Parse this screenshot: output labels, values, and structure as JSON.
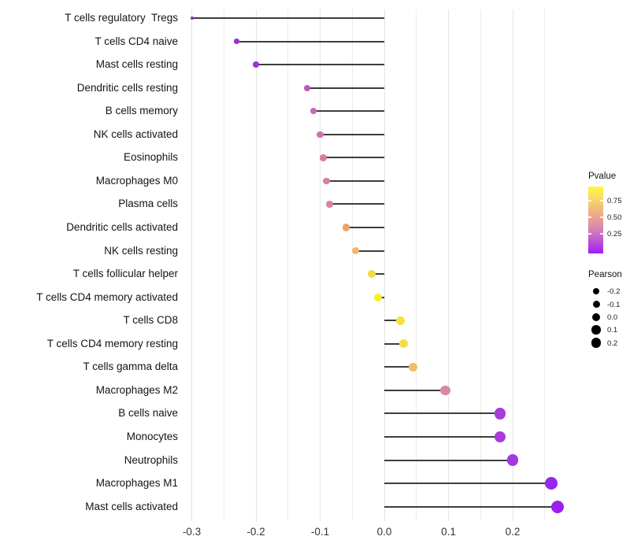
{
  "chart_data": {
    "type": "scatter",
    "variant": "lollipop",
    "title": "",
    "xlabel": "",
    "ylabel": "",
    "xlim": [
      -0.33,
      0.3
    ],
    "x_ticks": [
      -0.3,
      -0.2,
      -0.1,
      0.0,
      0.1,
      0.2
    ],
    "x_tick_labels": [
      "-0.3",
      "-0.2",
      "-0.1",
      "0.0",
      "0.1",
      "0.2"
    ],
    "grid_ticks": [
      -0.3,
      -0.25,
      -0.2,
      -0.15,
      -0.1,
      -0.05,
      0.0,
      0.05,
      0.1,
      0.15,
      0.2,
      0.25
    ],
    "grid": true,
    "baseline": 0.0,
    "rows": [
      {
        "label": "T cells regulatory  Tregs",
        "pearson": -0.3,
        "color": "#8e2bd2",
        "size": 4
      },
      {
        "label": "T cells CD4 naive",
        "pearson": -0.23,
        "color": "#962fd4",
        "size": 6.5
      },
      {
        "label": "Mast cells resting",
        "pearson": -0.2,
        "color": "#9c35d6",
        "size": 7.5
      },
      {
        "label": "Dendritic cells resting",
        "pearson": -0.12,
        "color": "#c253c4",
        "size": 8
      },
      {
        "label": "B cells memory",
        "pearson": -0.11,
        "color": "#cb64ba",
        "size": 8.2
      },
      {
        "label": "NK cells activated",
        "pearson": -0.1,
        "color": "#d172ae",
        "size": 8.4
      },
      {
        "label": "Eosinophils",
        "pearson": -0.095,
        "color": "#d77ca6",
        "size": 8.5
      },
      {
        "label": "Macrophages M0",
        "pearson": -0.09,
        "color": "#d87ea4",
        "size": 8.6
      },
      {
        "label": "Plasma cells",
        "pearson": -0.085,
        "color": "#da839e",
        "size": 8.7
      },
      {
        "label": "Dendritic cells activated",
        "pearson": -0.06,
        "color": "#eaa56c",
        "size": 9.2
      },
      {
        "label": "NK cells resting",
        "pearson": -0.045,
        "color": "#efb671",
        "size": 9.5
      },
      {
        "label": "T cells follicular helper",
        "pearson": -0.02,
        "color": "#f2da42",
        "size": 10
      },
      {
        "label": "T cells CD4 memory activated",
        "pearson": -0.01,
        "color": "#f8f01f",
        "size": 10.2
      },
      {
        "label": "T cells CD8",
        "pearson": 0.025,
        "color": "#f6e23c",
        "size": 11
      },
      {
        "label": "T cells CD4 memory resting",
        "pearson": 0.03,
        "color": "#f5de46",
        "size": 11.1
      },
      {
        "label": "T cells gamma delta",
        "pearson": 0.045,
        "color": "#f0bc69",
        "size": 11.4
      },
      {
        "label": "Macrophages M2",
        "pearson": 0.095,
        "color": "#d987a5",
        "size": 12.4
      },
      {
        "label": "B cells naive",
        "pearson": 0.18,
        "color": "#a93bdb",
        "size": 14.2
      },
      {
        "label": "Monocytes",
        "pearson": 0.18,
        "color": "#a93bdb",
        "size": 14.2
      },
      {
        "label": "Neutrophils",
        "pearson": 0.2,
        "color": "#a337e2",
        "size": 14.6
      },
      {
        "label": "Macrophages M1",
        "pearson": 0.26,
        "color": "#9628e9",
        "size": 15.8
      },
      {
        "label": "Mast cells activated",
        "pearson": 0.27,
        "color": "#9c1ff0",
        "size": 16
      }
    ],
    "legend_pvalue": {
      "title": "Pvalue",
      "tick_labels": [
        "0.75",
        "0.50",
        "0.25"
      ],
      "gradient_top_color": "#fcf93d",
      "gradient_bottom_color": "#a21af5"
    },
    "legend_pearson": {
      "title": "Pearson",
      "items": [
        {
          "label": "-0.2",
          "size": 8
        },
        {
          "label": "-0.1",
          "size": 9
        },
        {
          "label": "0.0",
          "size": 10.5
        },
        {
          "label": "0.1",
          "size": 11.5
        },
        {
          "label": "0.2",
          "size": 12.5
        }
      ]
    },
    "stem_color": "#3d3d3d",
    "dot_legend_color": "#000000"
  }
}
